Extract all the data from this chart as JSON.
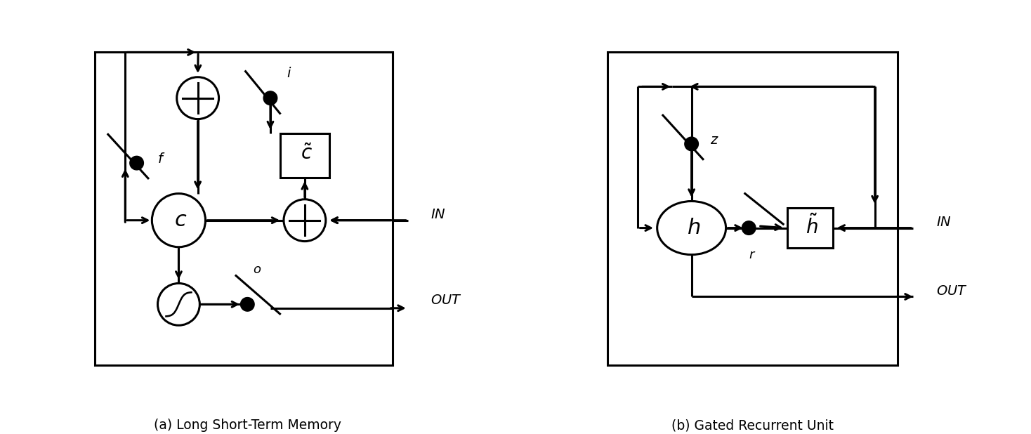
{
  "fig_width": 14.68,
  "fig_height": 6.18,
  "background_color": "#ffffff",
  "caption_left": "(a) Long Short-Term Memory",
  "caption_right": "(b) Gated Recurrent Unit",
  "caption_fontsize": 13.5,
  "lw": 2.2
}
